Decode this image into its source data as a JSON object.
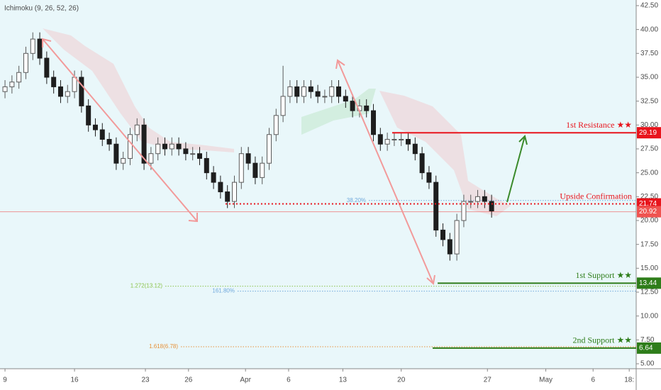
{
  "chart_data": {
    "type": "candlestick",
    "indicator": "Ichimoku (9, 26, 52, 26)",
    "x": [
      0,
      0.5,
      1,
      1.5,
      2,
      2.5,
      3,
      3.5,
      4,
      4.5,
      5,
      5.5,
      6,
      6.5,
      7,
      7.5,
      8,
      8.5,
      9,
      9.5,
      10,
      10.5,
      11,
      11.5,
      12,
      12.5,
      13,
      13.5,
      14,
      14.5,
      15,
      15.5,
      16,
      16.5,
      17,
      17.5,
      18,
      18.5,
      19,
      19.5,
      20,
      20.5,
      21,
      21.5,
      22,
      22.5,
      23,
      23.5,
      24,
      24.5,
      25,
      25.5,
      26,
      26.5,
      27,
      27.5,
      28,
      28.5,
      29,
      29.5,
      30,
      30.5,
      31,
      31.5,
      32,
      32.5,
      33,
      33.5,
      34,
      34.5,
      35
    ],
    "open": [
      33.5,
      34,
      34.5,
      35.5,
      37.5,
      39,
      37,
      35,
      34,
      33,
      33.5,
      35,
      32,
      30,
      29.5,
      28.5,
      28,
      26,
      26.5,
      29,
      30,
      26,
      27,
      28,
      27.5,
      28,
      27.5,
      27,
      27,
      26.5,
      25,
      24,
      23,
      22,
      24,
      27,
      26,
      24.5,
      26,
      29,
      31,
      33,
      34,
      33,
      34,
      33.5,
      33,
      33,
      34,
      33,
      32.5,
      31.5,
      32,
      31.5,
      29,
      28,
      28.5,
      28.5,
      28.5,
      28,
      27,
      25,
      24,
      19,
      18,
      16.5,
      20,
      22,
      22,
      22.5,
      22
    ],
    "high": [
      34.7,
      35.2,
      36.2,
      38.2,
      39.7,
      39.7,
      37.7,
      35.7,
      34.7,
      34.2,
      35.7,
      35.7,
      32.7,
      30.7,
      30.2,
      29.2,
      28.7,
      27.2,
      29.7,
      30.7,
      30.7,
      27.7,
      28.7,
      28.7,
      28.7,
      28.7,
      28.2,
      27.7,
      27.7,
      27.2,
      25.7,
      24.7,
      23.7,
      24.7,
      27.7,
      27.7,
      26.7,
      26.7,
      29.7,
      31.7,
      36.2,
      34.7,
      34.7,
      34.7,
      34.7,
      34.2,
      33.7,
      34.7,
      34.7,
      33.7,
      33.2,
      32.7,
      32.7,
      32.2,
      29.7,
      29.2,
      29.2,
      29.2,
      29.2,
      28.7,
      27.7,
      25.7,
      24.7,
      19.7,
      18.7,
      20.7,
      22.7,
      22.7,
      23.2,
      23.2,
      22.7
    ],
    "low": [
      32.8,
      33.3,
      33.8,
      34.8,
      36.8,
      36.3,
      34.3,
      33.3,
      32.3,
      32.3,
      32.8,
      31.3,
      29.3,
      28.8,
      27.8,
      27.3,
      25.3,
      25.3,
      25.8,
      28.3,
      25.3,
      25.3,
      26.3,
      26.8,
      26.8,
      26.8,
      26.3,
      26.3,
      25.8,
      24.3,
      23.3,
      22.3,
      21.3,
      21.3,
      23.3,
      25.3,
      23.8,
      23.8,
      25.3,
      28.3,
      30.3,
      32.3,
      32.3,
      32.3,
      32.8,
      32.3,
      32.3,
      32.3,
      32.3,
      31.8,
      30.8,
      30.8,
      30.8,
      28.3,
      27.3,
      27.3,
      27.8,
      27.8,
      27.3,
      26.3,
      24.3,
      23.3,
      18.3,
      17.3,
      15.8,
      15.8,
      19.3,
      21.3,
      21.3,
      21.3,
      20.3
    ],
    "close": [
      34,
      34.5,
      35.5,
      37.5,
      39,
      37,
      35,
      34,
      33,
      33.5,
      35,
      32,
      30,
      29.5,
      28.5,
      28,
      26,
      26.5,
      29,
      30,
      26,
      27,
      28,
      27.5,
      28,
      27.5,
      27,
      27,
      26.5,
      25,
      24,
      23,
      22,
      24,
      27,
      26,
      24.5,
      26,
      29,
      31,
      33,
      34,
      33,
      34,
      33.5,
      33,
      33,
      34,
      33,
      32.5,
      31.5,
      32,
      31.5,
      29,
      28,
      28.5,
      28.5,
      28.5,
      28,
      27,
      25,
      24,
      19,
      18,
      16.5,
      20,
      22,
      22,
      22.5,
      22,
      21
    ],
    "up_color": "#5a5a5a",
    "down_color": "#1e1e1e",
    "xlim": [
      -0.36,
      45.4
    ],
    "xticks": [
      {
        "value": 0,
        "label": "9"
      },
      {
        "value": 5,
        "label": "16"
      },
      {
        "value": 10.1,
        "label": "23"
      },
      {
        "value": 13.2,
        "label": "26"
      },
      {
        "value": 17.3,
        "label": "Apr"
      },
      {
        "value": 20.4,
        "label": "6"
      },
      {
        "value": 24.3,
        "label": "13"
      },
      {
        "value": 28.5,
        "label": "20"
      },
      {
        "value": 34.7,
        "label": "27"
      },
      {
        "value": 38.9,
        "label": "May"
      },
      {
        "value": 42.3,
        "label": "6"
      },
      {
        "value": 44.9,
        "label": "18:"
      }
    ],
    "ylim": [
      4.48,
      43.09
    ],
    "yticks": [
      {
        "value": 5,
        "label": "5.00"
      },
      {
        "value": 7.5,
        "label": "7.50"
      },
      {
        "value": 10,
        "label": "10.00"
      },
      {
        "value": 12.5,
        "label": "12.50"
      },
      {
        "value": 15,
        "label": "15.00"
      },
      {
        "value": 17.5,
        "label": "17.50"
      },
      {
        "value": 20,
        "label": "20.00"
      },
      {
        "value": 22.5,
        "label": "22.50"
      },
      {
        "value": 25,
        "label": "25.00"
      },
      {
        "value": 27.5,
        "label": "27.50"
      },
      {
        "value": 30,
        "label": "30.00"
      },
      {
        "value": 32.5,
        "label": "32.50"
      },
      {
        "value": 35,
        "label": "35.00"
      },
      {
        "value": 37.5,
        "label": "37.50"
      },
      {
        "value": 40,
        "label": "40.00"
      },
      {
        "value": 42.5,
        "label": "42.50"
      }
    ],
    "last_price": 20.92,
    "last_color": "#ef5350",
    "levels": [
      {
        "label": "1st Resistance ★★",
        "value": 29.19,
        "color": "#e8141c",
        "start": 27.85,
        "style": "solid"
      },
      {
        "label": "Upside Confirmation",
        "value": 21.74,
        "color": "#e8141c",
        "start": 15.86,
        "style": "dotted"
      },
      {
        "label": "1st Support ★★",
        "value": 13.44,
        "color": "#2e7d1a",
        "start": 31.12,
        "style": "solid"
      },
      {
        "label": "2nd Support ★★",
        "value": 6.64,
        "color": "#2e7d1a",
        "start": 30.76,
        "style": "solid"
      }
    ],
    "fibs": [
      {
        "label": "38.20%",
        "value": 22.1,
        "color": "#6fa8dc",
        "start": 26.17
      },
      {
        "label": "1.272(13.12)",
        "value": 13.12,
        "color": "#8bc34a",
        "start": 11.53
      },
      {
        "label": "161.80%",
        "value": 12.6,
        "color": "#6fa8dc",
        "start": 16.73
      },
      {
        "label": "1.618(6.78)",
        "value": 6.78,
        "color": "#e69138",
        "start": 12.65
      }
    ]
  }
}
